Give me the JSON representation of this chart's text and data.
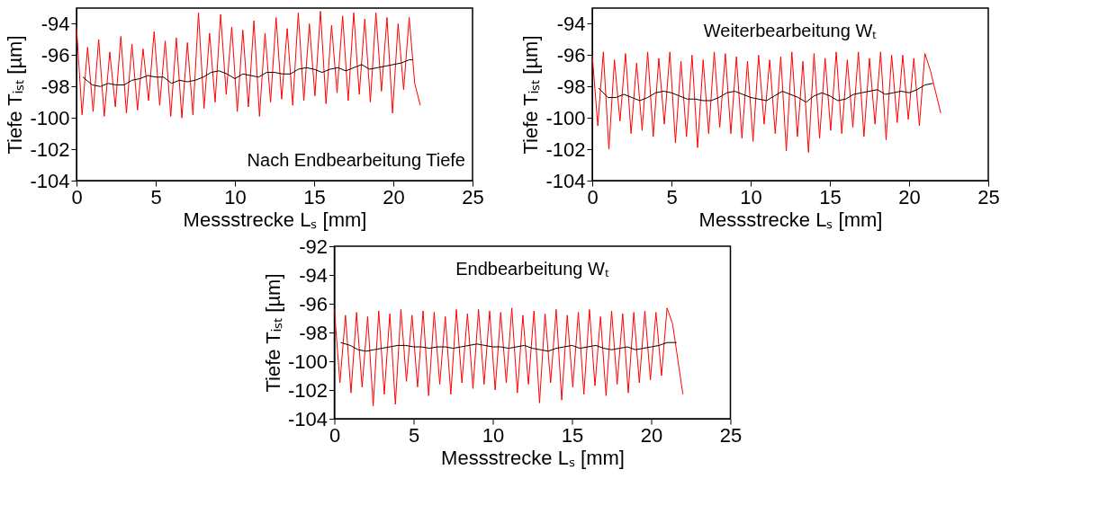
{
  "chart_data": [
    {
      "type": "line",
      "xlabel": "Messstrecke Lₛ [mm]",
      "ylabel": "Tiefe Tᵢₛₜ [µm]",
      "annotations": [
        "Nach Endbearbeitung Tiefe"
      ],
      "xlim": [
        0,
        25
      ],
      "xticks": [
        0,
        5,
        10,
        15,
        20,
        25
      ],
      "ylim": [
        -104,
        -93
      ],
      "yticks": [
        -104,
        -102,
        -100,
        -98,
        -96,
        -94
      ],
      "series": [
        {
          "color": "#ff0000",
          "x": [
            0,
            0.35,
            0.7,
            1.05,
            1.4,
            1.75,
            2.1,
            2.45,
            2.8,
            3.15,
            3.5,
            3.85,
            4.2,
            4.55,
            4.9,
            5.25,
            5.6,
            5.95,
            6.3,
            6.65,
            7,
            7.35,
            7.7,
            8.05,
            8.4,
            8.75,
            9.1,
            9.45,
            9.8,
            10.15,
            10.5,
            10.85,
            11.2,
            11.55,
            11.9,
            12.25,
            12.6,
            12.95,
            13.3,
            13.65,
            14,
            14.35,
            14.7,
            15.05,
            15.4,
            15.75,
            16.1,
            16.45,
            16.8,
            17.15,
            17.5,
            17.85,
            18.2,
            18.55,
            18.9,
            19.25,
            19.6,
            19.95,
            20.3,
            20.65,
            21,
            21.35,
            21.7
          ],
          "values": [
            -94.2,
            -99.8,
            -95.5,
            -99.6,
            -95.0,
            -99.9,
            -95.8,
            -99.3,
            -94.8,
            -99.7,
            -95.3,
            -99.5,
            -95.6,
            -98.9,
            -94.5,
            -99.2,
            -95.1,
            -99.9,
            -94.9,
            -100.0,
            -95.2,
            -99.8,
            -93.3,
            -99.4,
            -94.6,
            -99.0,
            -93.4,
            -98.5,
            -94.2,
            -99.6,
            -94.4,
            -99.3,
            -93.8,
            -99.9,
            -94.6,
            -99.0,
            -93.6,
            -98.8,
            -94.3,
            -99.2,
            -93.3,
            -98.9,
            -94.0,
            -98.6,
            -93.2,
            -99.1,
            -94.1,
            -98.4,
            -93.5,
            -98.9,
            -93.3,
            -98.5,
            -93.7,
            -99.0,
            -93.3,
            -98.3,
            -93.6,
            -99.7,
            -94.0,
            -98.2,
            -93.6,
            -97.8,
            -99.2
          ]
        },
        {
          "color": "#000000",
          "x": [
            0.4,
            1,
            1.5,
            2,
            2.5,
            3,
            3.5,
            4,
            4.5,
            5,
            5.5,
            6,
            6.5,
            7,
            7.5,
            8,
            8.5,
            9,
            9.5,
            10,
            10.5,
            11,
            11.5,
            12,
            12.5,
            13,
            13.5,
            14,
            14.5,
            15,
            15.5,
            16,
            16.5,
            17,
            17.5,
            18,
            18.5,
            19,
            19.5,
            20,
            20.5,
            21,
            21.2
          ],
          "values": [
            -97.4,
            -97.9,
            -98.0,
            -97.8,
            -97.9,
            -97.9,
            -97.6,
            -97.5,
            -97.3,
            -97.4,
            -97.4,
            -97.8,
            -97.6,
            -97.7,
            -97.6,
            -97.4,
            -97.1,
            -97.0,
            -97.2,
            -97.5,
            -97.2,
            -97.3,
            -97.4,
            -97.1,
            -97.1,
            -97.2,
            -97.2,
            -96.9,
            -96.8,
            -96.9,
            -97.1,
            -96.9,
            -96.8,
            -97.0,
            -96.8,
            -96.6,
            -96.9,
            -96.8,
            -96.7,
            -96.6,
            -96.5,
            -96.3,
            -96.3
          ]
        }
      ]
    },
    {
      "type": "line",
      "xlabel": "Messstrecke Lₛ [mm]",
      "ylabel": "Tiefe Tᵢₛₜ [µm]",
      "annotations": [
        "Weiterbearbeitung Wₜ"
      ],
      "xlim": [
        0,
        25
      ],
      "xticks": [
        0,
        5,
        10,
        15,
        20,
        25
      ],
      "ylim": [
        -104,
        -93
      ],
      "yticks": [
        -104,
        -102,
        -100,
        -98,
        -96,
        -94
      ],
      "series": [
        {
          "color": "#ff0000",
          "x": [
            0,
            0.35,
            0.7,
            1.05,
            1.4,
            1.75,
            2.1,
            2.45,
            2.8,
            3.15,
            3.5,
            3.85,
            4.2,
            4.55,
            4.9,
            5.25,
            5.6,
            5.95,
            6.3,
            6.65,
            7,
            7.35,
            7.7,
            8.05,
            8.4,
            8.75,
            9.1,
            9.45,
            9.8,
            10.15,
            10.5,
            10.85,
            11.2,
            11.55,
            11.9,
            12.25,
            12.6,
            12.95,
            13.3,
            13.65,
            14,
            14.35,
            14.7,
            15.05,
            15.4,
            15.75,
            16.1,
            16.45,
            16.8,
            17.15,
            17.5,
            17.85,
            18.2,
            18.55,
            18.9,
            19.25,
            19.6,
            19.95,
            20.3,
            20.65,
            21,
            21.35,
            22
          ],
          "values": [
            -96.0,
            -100.5,
            -95.8,
            -102.0,
            -96.3,
            -100.2,
            -95.9,
            -101.0,
            -96.5,
            -100.8,
            -95.8,
            -101.2,
            -96.2,
            -100.4,
            -95.8,
            -101.6,
            -96.4,
            -101.2,
            -96.0,
            -101.9,
            -96.3,
            -101.0,
            -95.8,
            -100.6,
            -95.9,
            -101.0,
            -96.1,
            -101.3,
            -96.4,
            -101.5,
            -96.0,
            -100.4,
            -96.3,
            -101.0,
            -96.1,
            -102.1,
            -95.8,
            -101.2,
            -96.4,
            -102.2,
            -95.9,
            -101.3,
            -96.2,
            -100.8,
            -95.8,
            -101.0,
            -96.3,
            -100.6,
            -95.8,
            -101.2,
            -96.2,
            -100.4,
            -95.8,
            -101.4,
            -96.0,
            -100.3,
            -96.0,
            -100.1,
            -96.2,
            -100.5,
            -95.9,
            -97.0,
            -99.7
          ]
        },
        {
          "color": "#000000",
          "x": [
            0.4,
            1,
            1.5,
            2,
            2.5,
            3,
            3.5,
            4,
            4.5,
            5,
            5.5,
            6,
            6.5,
            7,
            7.5,
            8,
            8.5,
            9,
            9.5,
            10,
            10.5,
            11,
            11.5,
            12,
            12.5,
            13,
            13.5,
            14,
            14.5,
            15,
            15.5,
            16,
            16.5,
            17,
            17.5,
            18,
            18.5,
            19,
            19.5,
            20,
            20.5,
            21,
            21.5
          ],
          "values": [
            -98.1,
            -98.7,
            -98.7,
            -98.5,
            -98.7,
            -98.9,
            -98.7,
            -98.4,
            -98.3,
            -98.4,
            -98.6,
            -98.8,
            -98.8,
            -98.9,
            -98.9,
            -98.7,
            -98.4,
            -98.3,
            -98.5,
            -98.7,
            -98.8,
            -98.9,
            -98.6,
            -98.3,
            -98.5,
            -98.7,
            -99.0,
            -98.6,
            -98.4,
            -98.6,
            -98.9,
            -98.8,
            -98.5,
            -98.4,
            -98.3,
            -98.2,
            -98.5,
            -98.4,
            -98.3,
            -98.4,
            -98.2,
            -97.9,
            -97.8
          ]
        }
      ]
    },
    {
      "type": "line",
      "xlabel": "Messstrecke Lₛ [mm]",
      "ylabel": "Tiefe Tᵢₛₜ [µm]",
      "annotations": [
        "Endbearbeitung Wₜ"
      ],
      "xlim": [
        0,
        25
      ],
      "xticks": [
        0,
        5,
        10,
        15,
        20,
        25
      ],
      "ylim": [
        -104,
        -92
      ],
      "yticks": [
        -104,
        -102,
        -100,
        -98,
        -96,
        -94,
        -92
      ],
      "series": [
        {
          "color": "#ff0000",
          "x": [
            0,
            0.35,
            0.7,
            1.05,
            1.4,
            1.75,
            2.1,
            2.45,
            2.8,
            3.15,
            3.5,
            3.85,
            4.2,
            4.55,
            4.9,
            5.25,
            5.6,
            5.95,
            6.3,
            6.65,
            7,
            7.35,
            7.7,
            8.05,
            8.4,
            8.75,
            9.1,
            9.45,
            9.8,
            10.15,
            10.5,
            10.85,
            11.2,
            11.55,
            11.9,
            12.25,
            12.6,
            12.95,
            13.3,
            13.65,
            14,
            14.35,
            14.7,
            15.05,
            15.4,
            15.75,
            16.1,
            16.45,
            16.8,
            17.15,
            17.5,
            17.85,
            18.2,
            18.55,
            18.9,
            19.25,
            19.6,
            19.95,
            20.3,
            20.65,
            21,
            21.35,
            22
          ],
          "values": [
            -96.4,
            -101.5,
            -96.8,
            -102.2,
            -96.6,
            -101.8,
            -96.9,
            -103.1,
            -96.5,
            -102.3,
            -96.7,
            -103.0,
            -96.4,
            -101.4,
            -96.8,
            -101.8,
            -96.5,
            -102.4,
            -96.6,
            -101.6,
            -96.9,
            -102.3,
            -96.4,
            -101.5,
            -96.7,
            -101.9,
            -96.4,
            -101.6,
            -96.5,
            -102.0,
            -96.6,
            -101.5,
            -96.3,
            -102.2,
            -96.8,
            -101.6,
            -96.5,
            -102.9,
            -96.7,
            -101.5,
            -96.4,
            -102.7,
            -96.8,
            -101.8,
            -96.6,
            -102.3,
            -96.4,
            -101.7,
            -96.9,
            -102.4,
            -96.5,
            -101.6,
            -96.7,
            -102.2,
            -96.6,
            -101.5,
            -96.5,
            -101.3,
            -96.6,
            -101.0,
            -96.3,
            -97.4,
            -102.3
          ]
        },
        {
          "color": "#000000",
          "x": [
            0.4,
            1,
            1.5,
            2,
            2.5,
            3,
            3.5,
            4,
            4.5,
            5,
            5.5,
            6,
            6.5,
            7,
            7.5,
            8,
            8.5,
            9,
            9.5,
            10,
            10.5,
            11,
            11.5,
            12,
            12.5,
            13,
            13.5,
            14,
            14.5,
            15,
            15.5,
            16,
            16.5,
            17,
            17.5,
            18,
            18.5,
            19,
            19.5,
            20,
            20.5,
            21,
            21.6
          ],
          "values": [
            -98.7,
            -98.9,
            -99.2,
            -99.3,
            -99.2,
            -99.1,
            -99.0,
            -98.9,
            -98.9,
            -99.0,
            -99.0,
            -99.1,
            -99.0,
            -99.0,
            -99.1,
            -99.0,
            -98.9,
            -98.8,
            -98.9,
            -99.0,
            -99.0,
            -99.1,
            -99.0,
            -98.9,
            -99.1,
            -99.2,
            -99.3,
            -99.1,
            -99.0,
            -98.9,
            -99.1,
            -99.0,
            -98.9,
            -99.1,
            -99.2,
            -99.1,
            -99.0,
            -99.2,
            -99.1,
            -99.0,
            -98.9,
            -98.7,
            -98.7
          ]
        }
      ]
    }
  ]
}
